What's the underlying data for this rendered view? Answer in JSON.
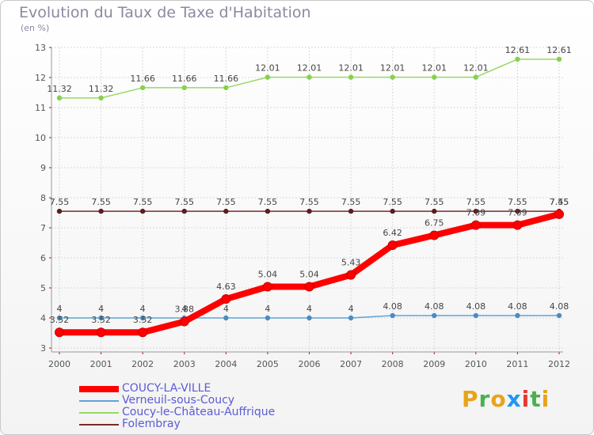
{
  "header": {
    "title": "Evolution du Taux de Taxe d'Habitation",
    "subtitle": "(en %)"
  },
  "brand": {
    "letters": [
      "P",
      "r",
      "o",
      "x",
      "i",
      "t",
      "i"
    ],
    "colors": [
      "#e8a319",
      "#4caf50",
      "#e8a319",
      "#2196f3",
      "#e53935",
      "#4caf50",
      "#e8a319"
    ]
  },
  "chart_data": {
    "type": "line",
    "x": [
      "2000",
      "2001",
      "2002",
      "2003",
      "2004",
      "2005",
      "2006",
      "2007",
      "2008",
      "2009",
      "2010",
      "2011",
      "2012"
    ],
    "ylim": [
      3,
      13
    ],
    "yticks": [
      "3",
      "4",
      "5",
      "6",
      "7",
      "8",
      "9",
      "10",
      "11",
      "12",
      "13"
    ],
    "grid": true,
    "legend_position": "bottom-left",
    "series": [
      {
        "name": "COUCY-LA-VILLE",
        "color": "#ff0000",
        "values": [
          3.52,
          3.52,
          3.52,
          3.88,
          4.63,
          5.04,
          5.04,
          5.43,
          6.42,
          6.75,
          7.09,
          7.09,
          7.45
        ],
        "labels": [
          "3.52",
          "3.52",
          "3.52",
          "3.88",
          "4.63",
          "5.04",
          "5.04",
          "5.43",
          "6.42",
          "6.75",
          "7.09",
          "7.09",
          "7.45"
        ]
      },
      {
        "name": "Verneuil-sous-Coucy",
        "color": "#5fa3d6",
        "values": [
          4,
          4,
          4,
          4,
          4,
          4,
          4,
          4,
          4.08,
          4.08,
          4.08,
          4.08,
          4.08
        ],
        "labels": [
          "4",
          "4",
          "4",
          "4",
          "4",
          "4",
          "4",
          "4",
          "4.08",
          "4.08",
          "4.08",
          "4.08",
          "4.08"
        ]
      },
      {
        "name": "Coucy-le-Château-Auffrique",
        "color": "#99d867",
        "values": [
          11.32,
          11.32,
          11.66,
          11.66,
          11.66,
          12.01,
          12.01,
          12.01,
          12.01,
          12.01,
          12.01,
          12.61,
          12.61
        ],
        "labels": [
          "11.32",
          "11.32",
          "11.66",
          "11.66",
          "11.66",
          "12.01",
          "12.01",
          "12.01",
          "12.01",
          "12.01",
          "12.01",
          "12.61",
          "12.61"
        ]
      },
      {
        "name": "Folembray",
        "color": "#7a2a2a",
        "values": [
          7.55,
          7.55,
          7.55,
          7.55,
          7.55,
          7.55,
          7.55,
          7.55,
          7.55,
          7.55,
          7.55,
          7.55,
          7.55
        ],
        "labels": [
          "7.55",
          "7.55",
          "7.55",
          "7.55",
          "7.55",
          "7.55",
          "7.55",
          "7.55",
          "7.55",
          "7.55",
          "7.55",
          "7.55",
          "7.55"
        ]
      }
    ]
  }
}
